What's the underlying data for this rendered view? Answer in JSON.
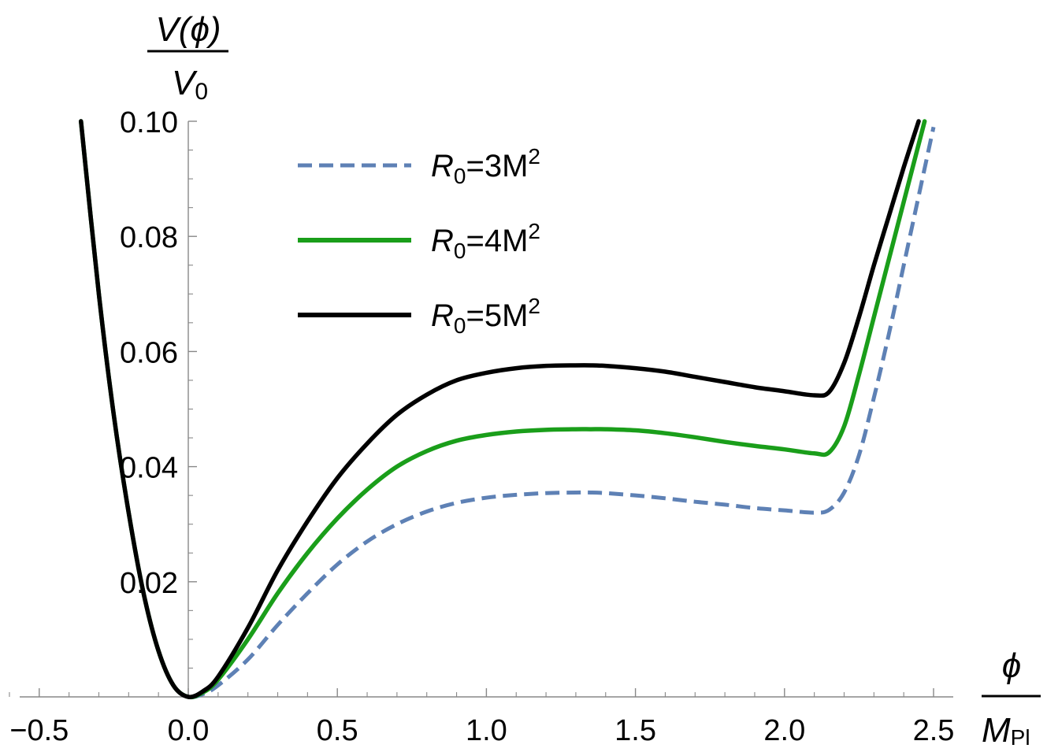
{
  "chart_data": {
    "type": "line",
    "xlabel": {
      "numerator": "ϕ",
      "denominator": "M",
      "denominator_sub": "Pl"
    },
    "ylabel": {
      "numerator": "V(ϕ)",
      "denominator": "V",
      "denominator_sub": "0"
    },
    "xlim": [
      -0.62,
      2.58
    ],
    "ylim": [
      0,
      0.1
    ],
    "x_ticks": [
      {
        "value": -0.5,
        "label": "−0.5"
      },
      {
        "value": 0.0,
        "label": "0.0"
      },
      {
        "value": 0.5,
        "label": "0.5"
      },
      {
        "value": 1.0,
        "label": "1.0"
      },
      {
        "value": 1.5,
        "label": "1.5"
      },
      {
        "value": 2.0,
        "label": "2.0"
      },
      {
        "value": 2.5,
        "label": "2.5"
      }
    ],
    "y_ticks": [
      {
        "value": 0.02,
        "label": "0.02"
      },
      {
        "value": 0.04,
        "label": "0.04"
      },
      {
        "value": 0.06,
        "label": "0.06"
      },
      {
        "value": 0.08,
        "label": "0.08"
      },
      {
        "value": 0.1,
        "label": "0.10"
      }
    ],
    "grid": false,
    "legend_position": "top-center",
    "series": [
      {
        "name": "R₀=3M²",
        "legend": {
          "base": "R",
          "sub": "0",
          "mid": "=3M",
          "sup": "2"
        },
        "color": "#5e81b5",
        "style": "dashed",
        "x": [
          -0.36,
          -0.3,
          -0.25,
          -0.2,
          -0.15,
          -0.1,
          -0.05,
          0.0,
          0.05,
          0.1,
          0.2,
          0.3,
          0.4,
          0.5,
          0.6,
          0.7,
          0.8,
          0.9,
          1.0,
          1.1,
          1.2,
          1.3,
          1.35,
          1.4,
          1.5,
          1.6,
          1.7,
          1.8,
          1.9,
          2.0,
          2.1,
          2.15,
          2.2,
          2.25,
          2.3,
          2.35,
          2.4,
          2.45,
          2.5
        ],
        "y": [
          0.1,
          0.07,
          0.049,
          0.032,
          0.018,
          0.008,
          0.002,
          0.0,
          0.0005,
          0.002,
          0.0065,
          0.0125,
          0.018,
          0.023,
          0.027,
          0.03,
          0.0322,
          0.0337,
          0.0346,
          0.0351,
          0.0354,
          0.0355,
          0.0355,
          0.0354,
          0.035,
          0.0345,
          0.0339,
          0.0334,
          0.0328,
          0.0324,
          0.032,
          0.0325,
          0.0355,
          0.042,
          0.052,
          0.063,
          0.075,
          0.087,
          0.099
        ]
      },
      {
        "name": "R₀=4M²",
        "legend": {
          "base": "R",
          "sub": "0",
          "mid": "=4M",
          "sup": "2"
        },
        "color": "#1a9e1a",
        "style": "solid",
        "x": [
          -0.36,
          -0.3,
          -0.25,
          -0.2,
          -0.15,
          -0.1,
          -0.05,
          0.0,
          0.05,
          0.1,
          0.2,
          0.3,
          0.4,
          0.5,
          0.6,
          0.7,
          0.8,
          0.9,
          1.0,
          1.1,
          1.2,
          1.3,
          1.35,
          1.4,
          1.5,
          1.6,
          1.7,
          1.8,
          1.9,
          2.0,
          2.1,
          2.15,
          2.2,
          2.25,
          2.3,
          2.35,
          2.4,
          2.45,
          2.47
        ],
        "y": [
          0.1,
          0.07,
          0.049,
          0.032,
          0.018,
          0.008,
          0.002,
          0.0,
          0.0008,
          0.003,
          0.01,
          0.018,
          0.025,
          0.031,
          0.036,
          0.04,
          0.0427,
          0.0445,
          0.0455,
          0.0461,
          0.0464,
          0.0465,
          0.0465,
          0.0465,
          0.0463,
          0.0458,
          0.0451,
          0.0443,
          0.0436,
          0.043,
          0.0423,
          0.0425,
          0.047,
          0.056,
          0.066,
          0.076,
          0.086,
          0.096,
          0.1
        ]
      },
      {
        "name": "R₀=5M²",
        "legend": {
          "base": "R",
          "sub": "0",
          "mid": "=5M",
          "sup": "2"
        },
        "color": "#000000",
        "style": "solid",
        "x": [
          -0.36,
          -0.3,
          -0.25,
          -0.2,
          -0.15,
          -0.1,
          -0.05,
          0.0,
          0.05,
          0.1,
          0.2,
          0.3,
          0.4,
          0.5,
          0.6,
          0.7,
          0.8,
          0.9,
          1.0,
          1.1,
          1.2,
          1.3,
          1.35,
          1.4,
          1.5,
          1.6,
          1.7,
          1.8,
          1.9,
          2.0,
          2.1,
          2.15,
          2.2,
          2.25,
          2.3,
          2.35,
          2.4,
          2.45
        ],
        "y": [
          0.1,
          0.07,
          0.049,
          0.032,
          0.018,
          0.008,
          0.002,
          0.0,
          0.001,
          0.0035,
          0.012,
          0.022,
          0.0305,
          0.038,
          0.044,
          0.049,
          0.0525,
          0.055,
          0.0563,
          0.0571,
          0.0575,
          0.0576,
          0.0576,
          0.0575,
          0.0571,
          0.0565,
          0.0556,
          0.0547,
          0.0538,
          0.0531,
          0.0524,
          0.053,
          0.058,
          0.066,
          0.075,
          0.0835,
          0.092,
          0.1
        ]
      }
    ]
  }
}
